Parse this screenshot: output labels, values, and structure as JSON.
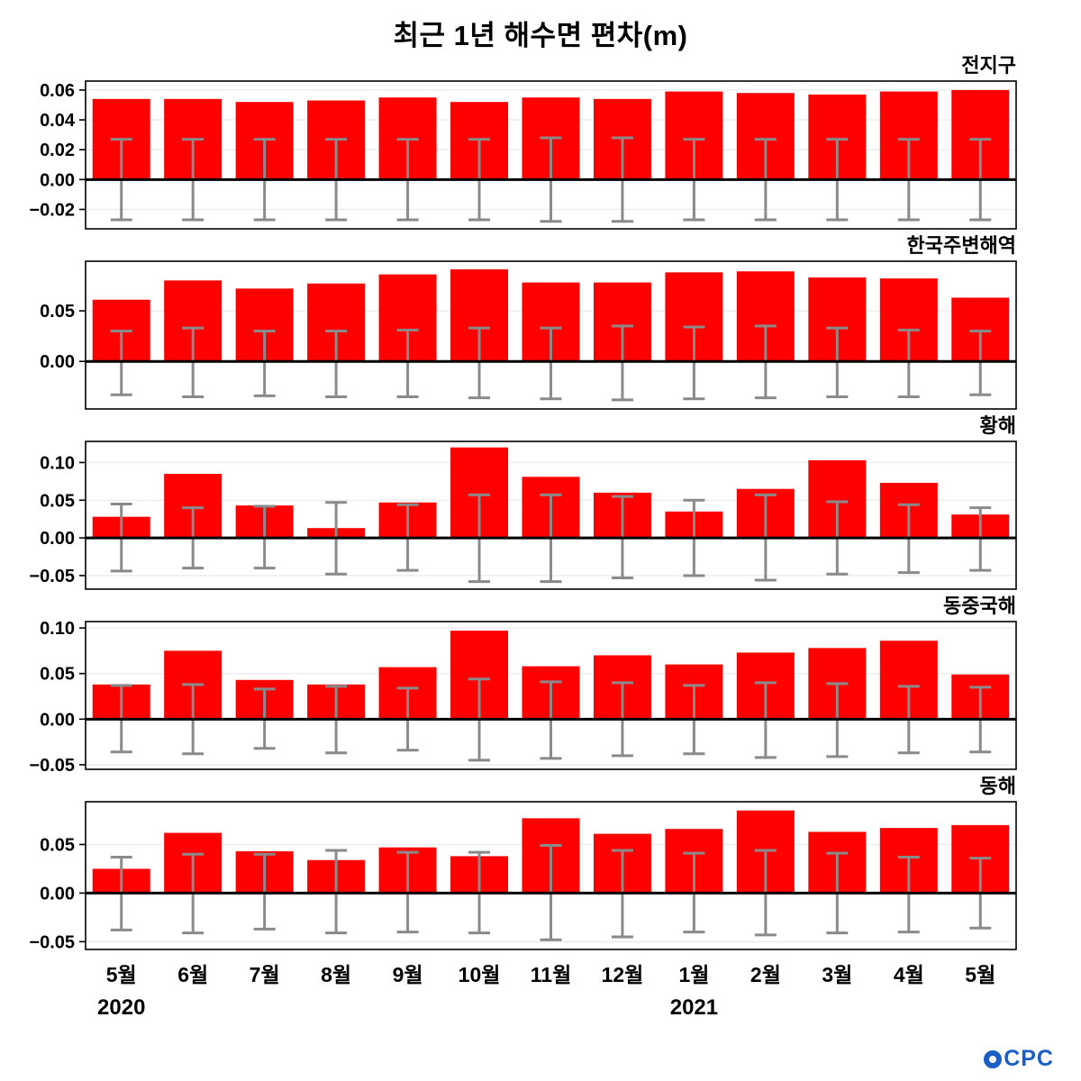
{
  "title": "최근 1년 해수면 편차(m)",
  "logo": {
    "text": "CPC",
    "color": "#1b5fc4"
  },
  "chart_data": {
    "type": "bar",
    "title": "최근 1년 해수면 편차(m)",
    "ylabel": "해수면 편차 (m)",
    "grid": true,
    "categories": [
      "5월",
      "6월",
      "7월",
      "8월",
      "9월",
      "10월",
      "11월",
      "12월",
      "1월",
      "2월",
      "3월",
      "4월",
      "5월"
    ],
    "year_labels": [
      {
        "text": "2020",
        "index": 0
      },
      {
        "text": "2021",
        "index": 8
      }
    ],
    "bar_color": "#fe0000",
    "error_color": "#8a8a8a",
    "panels": [
      {
        "name": "전지구",
        "values": [
          0.054,
          0.054,
          0.052,
          0.053,
          0.055,
          0.052,
          0.055,
          0.054,
          0.059,
          0.058,
          0.057,
          0.059,
          0.06
        ],
        "err_high": [
          0.027,
          0.027,
          0.027,
          0.027,
          0.027,
          0.027,
          0.028,
          0.028,
          0.027,
          0.027,
          0.027,
          0.027,
          0.027
        ],
        "err_low": [
          -0.027,
          -0.027,
          -0.027,
          -0.027,
          -0.027,
          -0.027,
          -0.028,
          -0.028,
          -0.027,
          -0.027,
          -0.027,
          -0.027,
          -0.027
        ],
        "ylim": [
          -0.033,
          0.066
        ],
        "ticks": [
          0.06,
          0.04,
          0.02,
          0.0,
          -0.02
        ]
      },
      {
        "name": "한국주변해역",
        "values": [
          0.061,
          0.08,
          0.072,
          0.077,
          0.086,
          0.091,
          0.078,
          0.078,
          0.088,
          0.089,
          0.083,
          0.082,
          0.063
        ],
        "err_high": [
          0.03,
          0.033,
          0.03,
          0.03,
          0.031,
          0.033,
          0.033,
          0.035,
          0.034,
          0.035,
          0.033,
          0.031,
          0.03
        ],
        "err_low": [
          -0.033,
          -0.035,
          -0.034,
          -0.035,
          -0.035,
          -0.036,
          -0.037,
          -0.038,
          -0.037,
          -0.036,
          -0.035,
          -0.035,
          -0.033
        ],
        "ylim": [
          -0.047,
          0.099
        ],
        "ticks": [
          0.05,
          0.0
        ]
      },
      {
        "name": "황해",
        "values": [
          0.028,
          0.085,
          0.043,
          0.013,
          0.047,
          0.12,
          0.081,
          0.06,
          0.035,
          0.065,
          0.103,
          0.073,
          0.031
        ],
        "err_high": [
          0.045,
          0.04,
          0.042,
          0.047,
          0.044,
          0.057,
          0.057,
          0.055,
          0.05,
          0.057,
          0.048,
          0.044,
          0.04
        ],
        "err_low": [
          -0.044,
          -0.04,
          -0.04,
          -0.048,
          -0.043,
          -0.058,
          -0.058,
          -0.053,
          -0.05,
          -0.056,
          -0.048,
          -0.046,
          -0.043
        ],
        "ylim": [
          -0.068,
          0.128
        ],
        "ticks": [
          0.1,
          0.05,
          0.0,
          -0.05
        ]
      },
      {
        "name": "동중국해",
        "values": [
          0.038,
          0.075,
          0.043,
          0.038,
          0.057,
          0.097,
          0.058,
          0.07,
          0.06,
          0.073,
          0.078,
          0.086,
          0.049
        ],
        "err_high": [
          0.037,
          0.038,
          0.033,
          0.036,
          0.034,
          0.044,
          0.041,
          0.04,
          0.037,
          0.04,
          0.039,
          0.036,
          0.035
        ],
        "err_low": [
          -0.036,
          -0.038,
          -0.032,
          -0.037,
          -0.034,
          -0.045,
          -0.043,
          -0.04,
          -0.038,
          -0.042,
          -0.041,
          -0.037,
          -0.036
        ],
        "ylim": [
          -0.055,
          0.107
        ],
        "ticks": [
          0.1,
          0.05,
          0.0,
          -0.05
        ]
      },
      {
        "name": "동해",
        "values": [
          0.025,
          0.062,
          0.043,
          0.034,
          0.047,
          0.038,
          0.077,
          0.061,
          0.066,
          0.085,
          0.063,
          0.067,
          0.07
        ],
        "err_high": [
          0.037,
          0.04,
          0.04,
          0.044,
          0.042,
          0.042,
          0.049,
          0.044,
          0.041,
          0.044,
          0.041,
          0.037,
          0.036
        ],
        "err_low": [
          -0.038,
          -0.041,
          -0.037,
          -0.041,
          -0.04,
          -0.041,
          -0.048,
          -0.045,
          -0.04,
          -0.043,
          -0.041,
          -0.04,
          -0.036
        ],
        "ylim": [
          -0.058,
          0.094
        ],
        "ticks": [
          0.05,
          0.0,
          -0.05
        ]
      }
    ]
  }
}
